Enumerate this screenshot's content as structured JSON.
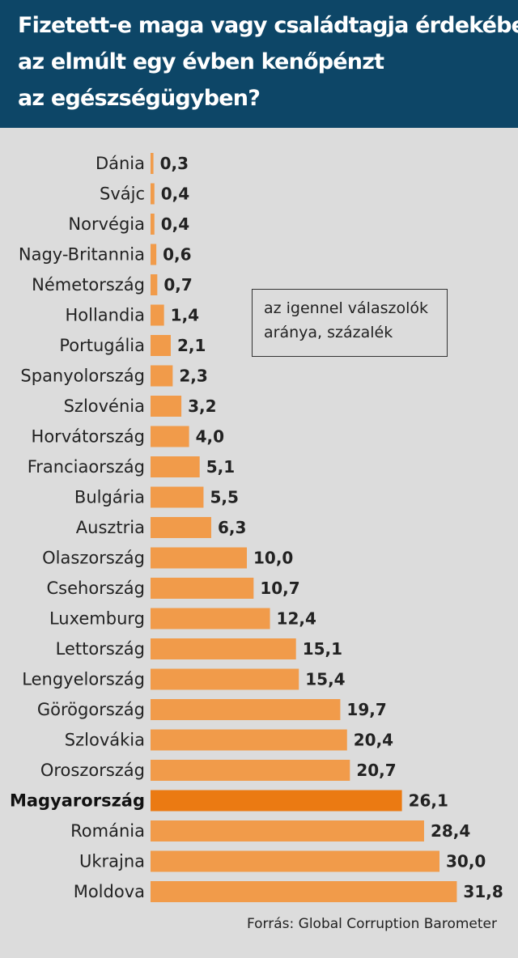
{
  "header": {
    "title_lines": [
      "Fizetett-e maga vagy családtagja érdekében",
      "az elmúlt egy évben kenőpénzt",
      "az egészségügyben?"
    ]
  },
  "legend": {
    "lines": [
      "az igennel válaszolók",
      "aránya, százalék"
    ]
  },
  "source": "Forrás: Global Corruption Barometer",
  "colors": {
    "header_bg": "#0d4667",
    "bar": "#f19b4a",
    "bar_highlight": "#eb7a12",
    "background": "#dcdcdc"
  },
  "chart_data": {
    "type": "bar",
    "orientation": "horizontal",
    "title": "Fizetett-e maga vagy családtagja érdekében az elmúlt egy évben kenőpénzt az egészségügyben?",
    "unit": "az igennel válaszolók aránya, százalék",
    "categories": [
      "Dánia",
      "Svájc",
      "Norvégia",
      "Nagy-Britannia",
      "Németország",
      "Hollandia",
      "Portugália",
      "Spanyolország",
      "Szlovénia",
      "Horvátország",
      "Franciaország",
      "Bulgária",
      "Ausztria",
      "Olaszország",
      "Csehország",
      "Luxemburg",
      "Lettország",
      "Lengyelország",
      "Görögország",
      "Szlovákia",
      "Oroszország",
      "Magyarország",
      "Románia",
      "Ukrajna",
      "Moldova"
    ],
    "values": [
      0.3,
      0.4,
      0.4,
      0.6,
      0.7,
      1.4,
      2.1,
      2.3,
      3.2,
      4.0,
      5.1,
      5.5,
      6.3,
      10.0,
      10.7,
      12.4,
      15.1,
      15.4,
      19.7,
      20.4,
      20.7,
      26.1,
      28.4,
      30.0,
      31.8
    ],
    "value_labels": [
      "0,3",
      "0,4",
      "0,4",
      "0,6",
      "0,7",
      "1,4",
      "2,1",
      "2,3",
      "3,2",
      "4,0",
      "5,1",
      "5,5",
      "6,3",
      "10,0",
      "10,7",
      "12,4",
      "15,1",
      "15,4",
      "19,7",
      "20,4",
      "20,7",
      "26,1",
      "28,4",
      "30,0",
      "31,8"
    ],
    "highlight": "Magyarország",
    "grid": false,
    "legend_placement": "right"
  }
}
